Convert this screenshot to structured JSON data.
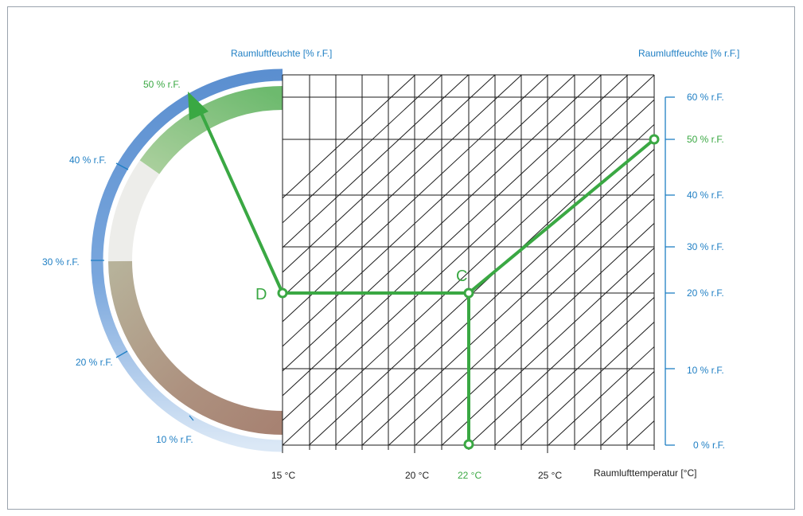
{
  "titles": {
    "left": "Raumluftfeuchte [% r.F.]",
    "right": "Raumluftfeuchte [% r.F.]",
    "bottom": "Raumlufttemperatur [°C]"
  },
  "left_scale": [
    {
      "label": "50 % r.F.",
      "highlight": true
    },
    {
      "label": "40 % r.F.",
      "highlight": false
    },
    {
      "label": "30 % r.F.",
      "highlight": false
    },
    {
      "label": "20 % r.F.",
      "highlight": false
    },
    {
      "label": "10 % r.F.",
      "highlight": false
    }
  ],
  "right_scale": [
    {
      "label": "60 % r.F.",
      "highlight": false
    },
    {
      "label": "50 % r.F.",
      "highlight": true
    },
    {
      "label": "40 % r.F.",
      "highlight": false
    },
    {
      "label": "30 % r.F.",
      "highlight": false
    },
    {
      "label": "20 % r.F.",
      "highlight": false
    },
    {
      "label": "10 % r.F.",
      "highlight": false
    },
    {
      "label": "0 % r.F.",
      "highlight": false
    }
  ],
  "bottom_scale": [
    {
      "label": "15 °C",
      "highlight": false
    },
    {
      "label": "20 °C",
      "highlight": false
    },
    {
      "label": "22 °C",
      "highlight": true
    },
    {
      "label": "25 °C",
      "highlight": false
    }
  ],
  "points": {
    "c": "C",
    "d": "D"
  },
  "colors": {
    "accent_blue": "#1f7fc4",
    "accent_green": "#3aa843",
    "grid": "#1a1a1a"
  }
}
